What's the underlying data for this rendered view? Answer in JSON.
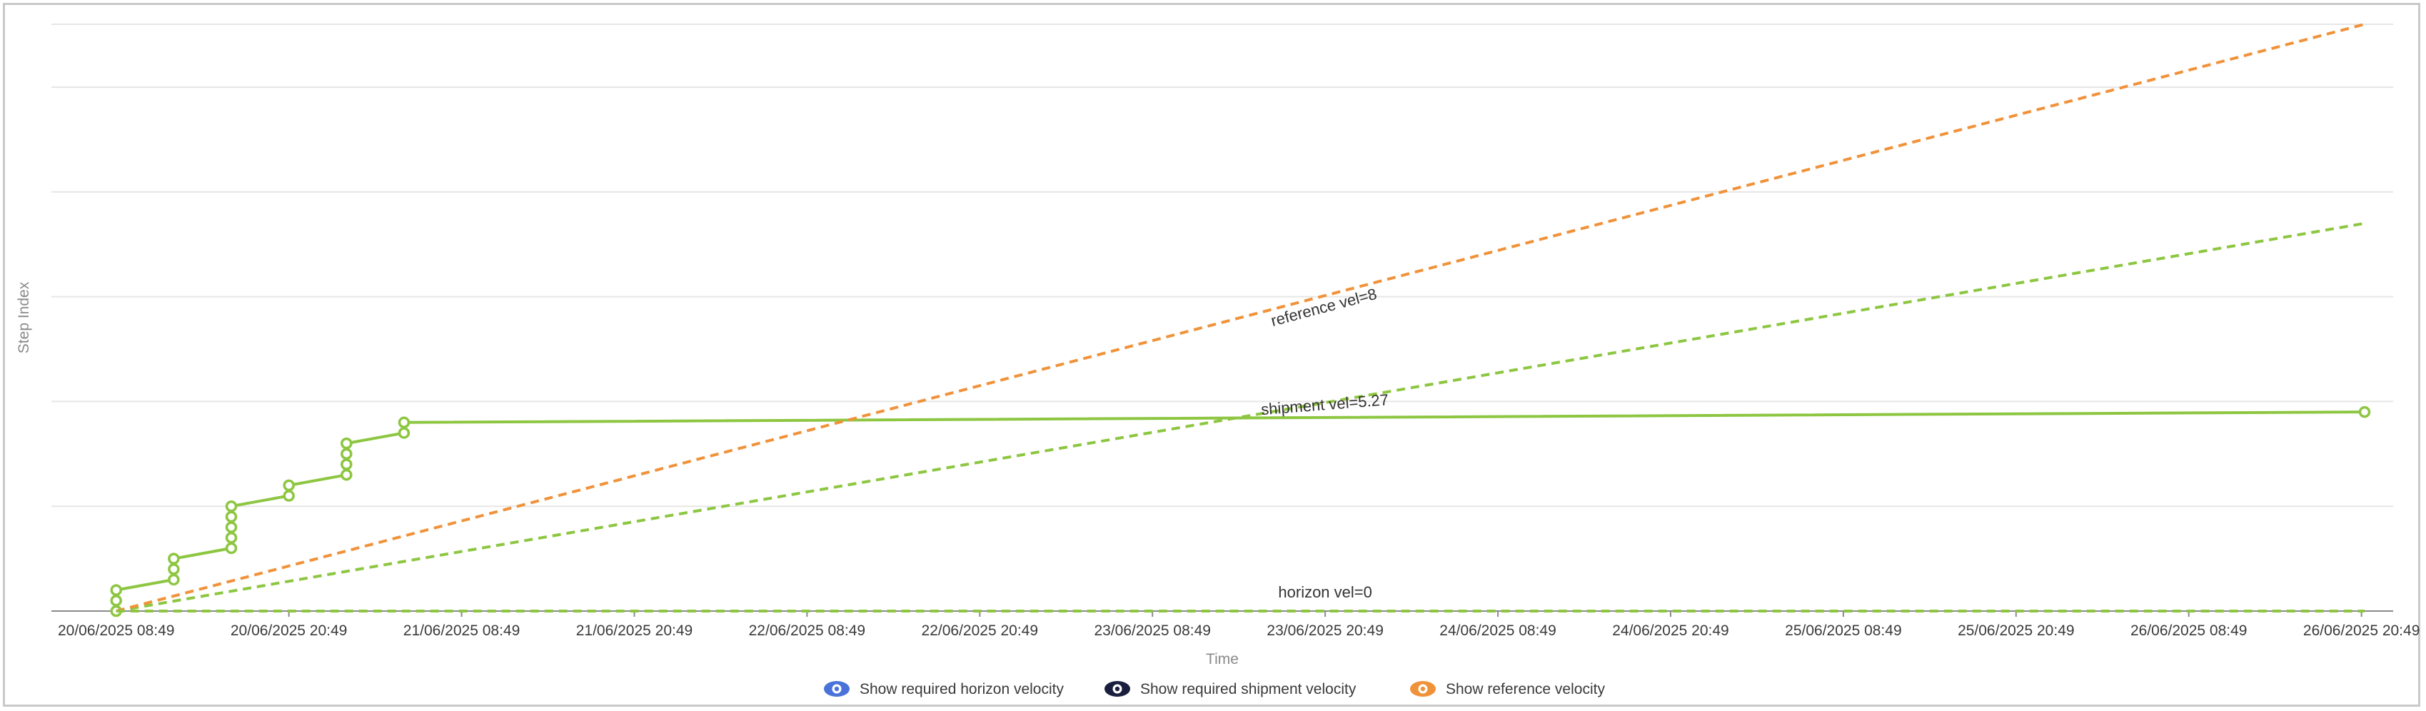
{
  "chart_data": {
    "type": "line",
    "xlabel": "Time",
    "ylabel": "Step Index",
    "x_ticks": [
      "20/06/2025 08:49",
      "20/06/2025 20:49",
      "21/06/2025 08:49",
      "21/06/2025 20:49",
      "22/06/2025 08:49",
      "22/06/2025 20:49",
      "23/06/2025 08:49",
      "23/06/2025 20:49",
      "24/06/2025 08:49",
      "24/06/2025 20:49",
      "25/06/2025 08:49",
      "25/06/2025 20:49",
      "26/06/2025 08:49",
      "26/06/2025 20:49"
    ],
    "x_unit": "hours",
    "xlim": [
      -4.5,
      158.2
    ],
    "ylim": [
      0,
      56
    ],
    "grid": true,
    "series": [
      {
        "name": "",
        "style": "solid-markers",
        "color": "#8dc641",
        "points": [
          [
            0,
            0
          ],
          [
            0,
            1
          ],
          [
            0,
            2
          ],
          [
            4,
            3
          ],
          [
            4,
            4
          ],
          [
            4,
            5
          ],
          [
            8,
            6
          ],
          [
            8,
            7
          ],
          [
            8,
            8
          ],
          [
            8,
            9
          ],
          [
            8,
            10
          ],
          [
            12,
            11
          ],
          [
            12,
            12
          ],
          [
            16,
            13
          ],
          [
            16,
            14
          ],
          [
            16,
            15
          ],
          [
            16,
            16
          ],
          [
            20,
            17
          ],
          [
            20,
            18
          ],
          [
            164,
            19
          ]
        ]
      },
      {
        "name": "",
        "style": "dashed",
        "color": "#8dc641",
        "points": [
          [
            0,
            0
          ],
          [
            164,
            37
          ]
        ]
      },
      {
        "name": "",
        "style": "dashed",
        "color": "#f0923a",
        "points": [
          [
            0,
            0
          ],
          [
            164,
            56
          ]
        ]
      },
      {
        "name": "",
        "style": "dashed",
        "color": "#8dc641",
        "points": [
          [
            0,
            0
          ],
          [
            164,
            0
          ]
        ]
      }
    ],
    "annotations": [
      {
        "text": "reference vel=8",
        "x": 84,
        "y": 28.5,
        "angle": -14.8
      },
      {
        "text": "shipment vel=5.27",
        "x": 84,
        "y": 19.2,
        "angle": -4.5
      },
      {
        "text": "horizon vel=0",
        "x": 84,
        "y": 1.3,
        "angle": 0
      }
    ],
    "legend_position": "bottom-center"
  },
  "legend": [
    {
      "label": "Show required horizon velocity",
      "icon": "eye-icon",
      "color": "#4a73d9"
    },
    {
      "label": "Show required shipment velocity",
      "icon": "eye-icon",
      "color": "#1a1f3d"
    },
    {
      "label": "Show reference velocity",
      "icon": "eye-icon",
      "color": "#f0923a"
    }
  ],
  "colors": {
    "grid": "#e6e6e6",
    "axis": "#8a8a8a"
  }
}
